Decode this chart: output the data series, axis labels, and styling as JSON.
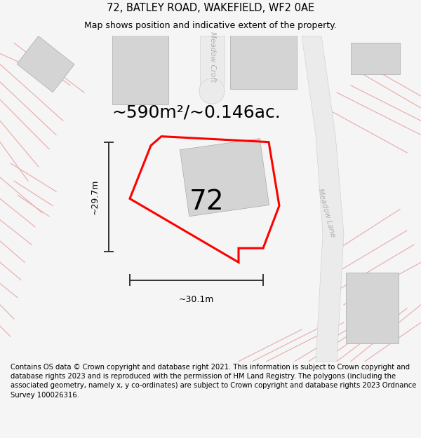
{
  "title": "72, BATLEY ROAD, WAKEFIELD, WF2 0AE",
  "subtitle": "Map shows position and indicative extent of the property.",
  "footer": "Contains OS data © Crown copyright and database right 2021. This information is subject to Crown copyright and database rights 2023 and is reproduced with the permission of HM Land Registry. The polygons (including the associated geometry, namely x, y co-ordinates) are subject to Crown copyright and database rights 2023 Ordnance Survey 100026316.",
  "area_text": "~590m²/~0.146ac.",
  "label_72": "72",
  "dim_width": "~30.1m",
  "dim_height": "~29.7m",
  "road_label_1": "Meadow Croft",
  "road_label_2": "Meadow Lane",
  "bg_color": "#f5f5f5",
  "map_bg": "#ffffff",
  "building_color": "#d4d4d4",
  "dim_line_color": "#333333",
  "road_line_color": "#e8aaaa",
  "plot_outline_color": "#ff0000",
  "title_fontsize": 10.5,
  "subtitle_fontsize": 9,
  "footer_fontsize": 7.2,
  "area_fontsize": 18,
  "label_fontsize": 28
}
